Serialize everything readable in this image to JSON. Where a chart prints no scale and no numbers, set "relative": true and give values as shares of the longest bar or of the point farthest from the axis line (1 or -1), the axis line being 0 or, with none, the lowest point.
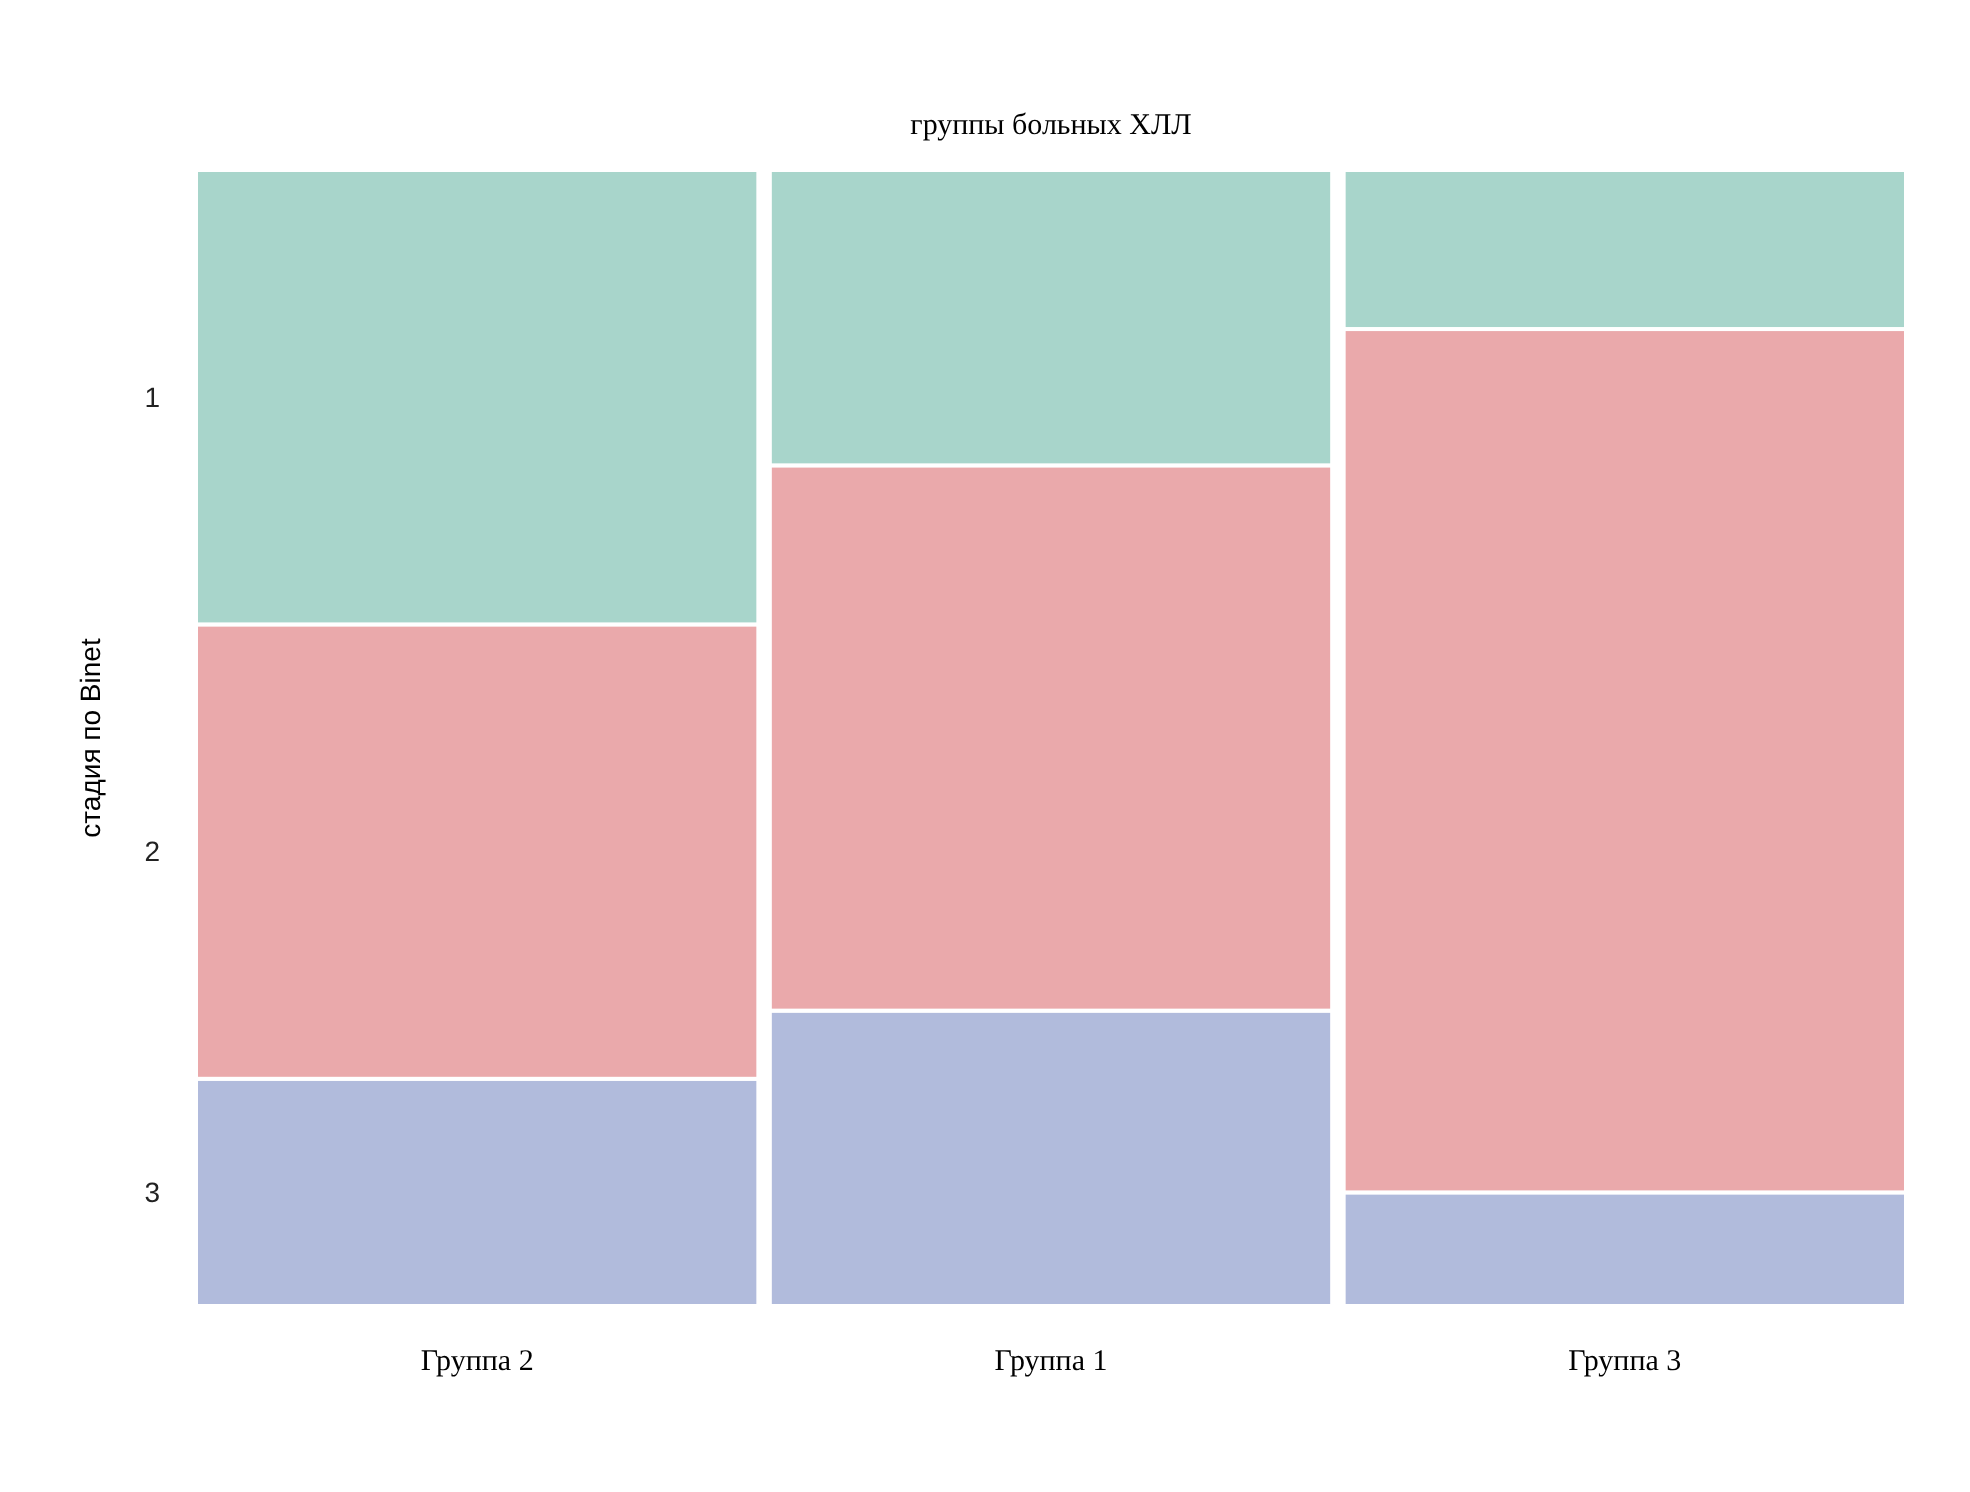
{
  "chart_data": {
    "type": "bar",
    "title": "группы больных ХЛЛ",
    "ylabel": "стадия по Binet",
    "categories": [
      "Группа 2",
      "Группа 1",
      "Группа 3"
    ],
    "stacked": true,
    "relative": true,
    "series": [
      {
        "name": "3",
        "color": "#b1bbdc",
        "values": [
          0.2,
          0.26,
          0.1
        ]
      },
      {
        "name": "2",
        "color": "#eaa9ab",
        "values": [
          0.4,
          0.48,
          0.76
        ]
      },
      {
        "name": "1",
        "color": "#a8d5cb",
        "values": [
          0.4,
          0.26,
          0.14
        ]
      }
    ]
  }
}
